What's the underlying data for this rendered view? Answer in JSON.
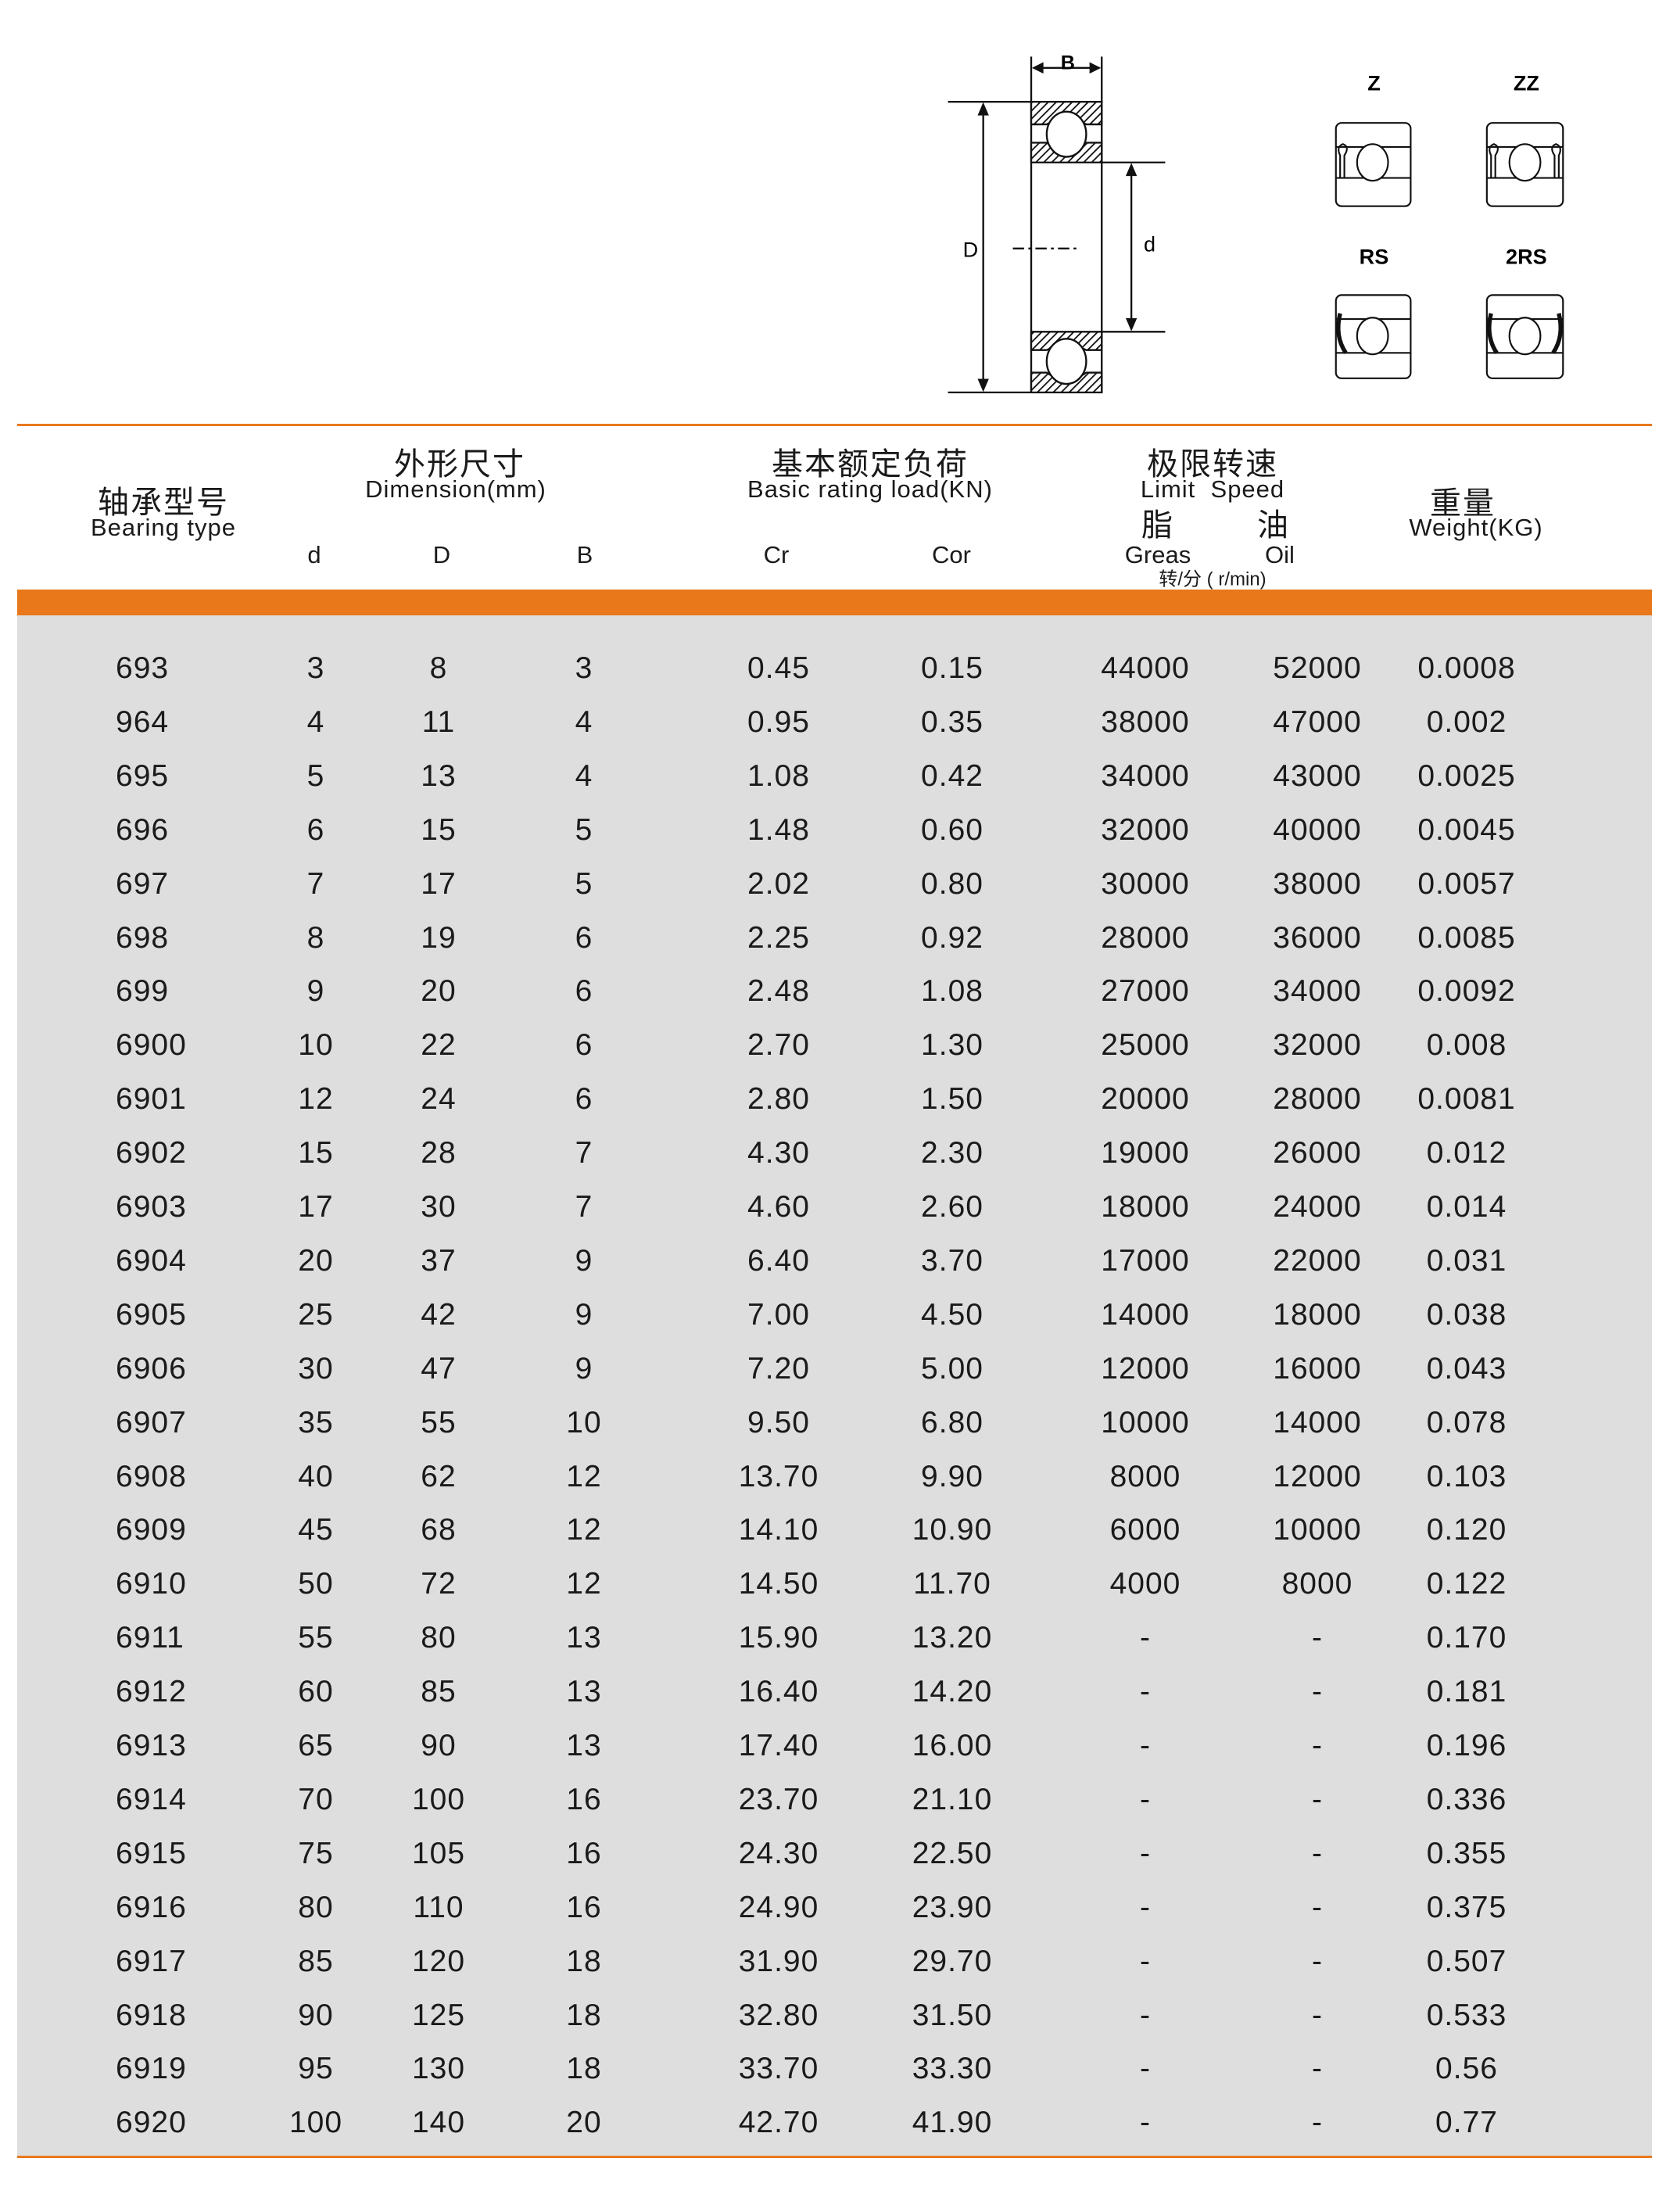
{
  "diagram": {
    "labels": {
      "B": "B",
      "D": "D",
      "d": "d"
    },
    "seal_types": [
      "Z",
      "ZZ",
      "RS",
      "2RS"
    ]
  },
  "header": {
    "type_cn": "轴承型号",
    "type_en": "Bearing type",
    "dim_cn": "外形尺寸",
    "dim_en": "Dimension(mm)",
    "load_cn": "基本额定负荷",
    "load_en": "Basic rating load(KN)",
    "speed_cn": "极限转速",
    "speed_en": "Limit  Speed",
    "grease_cn": "脂",
    "oil_cn": "油",
    "weight_cn": "重量",
    "weight_en": "Weight(KG)",
    "col_d": "d",
    "col_D": "D",
    "col_B": "B",
    "col_cr": "Cr",
    "col_cor": "Cor",
    "col_grease": "Greas",
    "col_oil": "Oil",
    "speed_unit": "转/分 ( r/min)"
  },
  "accent_color": "#e8781a",
  "rows": [
    [
      "693",
      "3",
      "8",
      "3",
      "0.45",
      "0.15",
      "44000",
      "52000",
      "0.0008"
    ],
    [
      "964",
      "4",
      "11",
      "4",
      "0.95",
      "0.35",
      "38000",
      "47000",
      "0.002"
    ],
    [
      "695",
      "5",
      "13",
      "4",
      "1.08",
      "0.42",
      "34000",
      "43000",
      "0.0025"
    ],
    [
      "696",
      "6",
      "15",
      "5",
      "1.48",
      "0.60",
      "32000",
      "40000",
      "0.0045"
    ],
    [
      "697",
      "7",
      "17",
      "5",
      "2.02",
      "0.80",
      "30000",
      "38000",
      "0.0057"
    ],
    [
      "698",
      "8",
      "19",
      "6",
      "2.25",
      "0.92",
      "28000",
      "36000",
      "0.0085"
    ],
    [
      "699",
      "9",
      "20",
      "6",
      "2.48",
      "1.08",
      "27000",
      "34000",
      "0.0092"
    ],
    [
      "6900",
      "10",
      "22",
      "6",
      "2.70",
      "1.30",
      "25000",
      "32000",
      "0.008"
    ],
    [
      "6901",
      "12",
      "24",
      "6",
      "2.80",
      "1.50",
      "20000",
      "28000",
      "0.0081"
    ],
    [
      "6902",
      "15",
      "28",
      "7",
      "4.30",
      "2.30",
      "19000",
      "26000",
      "0.012"
    ],
    [
      "6903",
      "17",
      "30",
      "7",
      "4.60",
      "2.60",
      "18000",
      "24000",
      "0.014"
    ],
    [
      "6904",
      "20",
      "37",
      "9",
      "6.40",
      "3.70",
      "17000",
      "22000",
      "0.031"
    ],
    [
      "6905",
      "25",
      "42",
      "9",
      "7.00",
      "4.50",
      "14000",
      "18000",
      "0.038"
    ],
    [
      "6906",
      "30",
      "47",
      "9",
      "7.20",
      "5.00",
      "12000",
      "16000",
      "0.043"
    ],
    [
      "6907",
      "35",
      "55",
      "10",
      "9.50",
      "6.80",
      "10000",
      "14000",
      "0.078"
    ],
    [
      "6908",
      "40",
      "62",
      "12",
      "13.70",
      "9.90",
      "8000",
      "12000",
      "0.103"
    ],
    [
      "6909",
      "45",
      "68",
      "12",
      "14.10",
      "10.90",
      "6000",
      "10000",
      "0.120"
    ],
    [
      "6910",
      "50",
      "72",
      "12",
      "14.50",
      "11.70",
      "4000",
      "8000",
      "0.122"
    ],
    [
      "6911",
      "55",
      "80",
      "13",
      "15.90",
      "13.20",
      "-",
      "-",
      "0.170"
    ],
    [
      "6912",
      "60",
      "85",
      "13",
      "16.40",
      "14.20",
      "-",
      "-",
      "0.181"
    ],
    [
      "6913",
      "65",
      "90",
      "13",
      "17.40",
      "16.00",
      "-",
      "-",
      "0.196"
    ],
    [
      "6914",
      "70",
      "100",
      "16",
      "23.70",
      "21.10",
      "-",
      "-",
      "0.336"
    ],
    [
      "6915",
      "75",
      "105",
      "16",
      "24.30",
      "22.50",
      "-",
      "-",
      "0.355"
    ],
    [
      "6916",
      "80",
      "110",
      "16",
      "24.90",
      "23.90",
      "-",
      "-",
      "0.375"
    ],
    [
      "6917",
      "85",
      "120",
      "18",
      "31.90",
      "29.70",
      "-",
      "-",
      "0.507"
    ],
    [
      "6918",
      "90",
      "125",
      "18",
      "32.80",
      "31.50",
      "-",
      "-",
      "0.533"
    ],
    [
      "6919",
      "95",
      "130",
      "18",
      "33.70",
      "33.30",
      "-",
      "-",
      "0.56"
    ],
    [
      "6920",
      "100",
      "140",
      "20",
      "42.70",
      "41.90",
      "-",
      "-",
      "0.77"
    ]
  ]
}
